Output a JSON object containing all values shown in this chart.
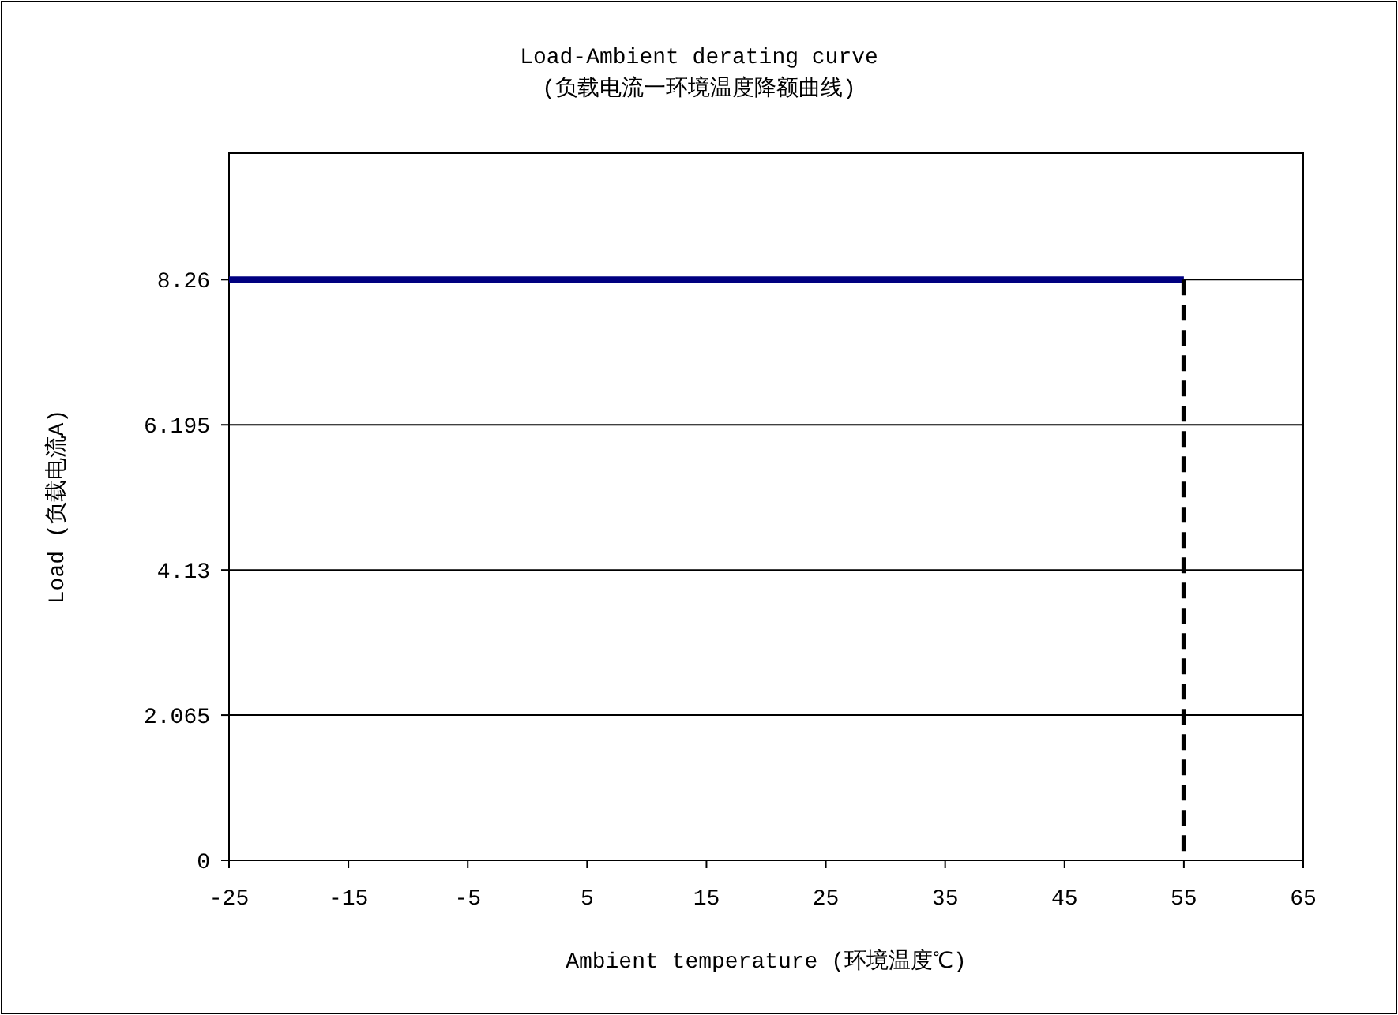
{
  "chart_data": {
    "type": "line",
    "title": "Load-Ambient derating curve",
    "subtitle": "(负载电流一环境温度降额曲线)",
    "xlabel": "Ambient temperature  (环境温度℃)",
    "ylabel": "Load (负载电流A)",
    "x": [
      -25,
      55
    ],
    "xlim": [
      -25,
      65
    ],
    "xticks": [
      -25,
      -15,
      -5,
      5,
      15,
      25,
      35,
      45,
      55,
      65
    ],
    "ylim": [
      0,
      10.06
    ],
    "yticks": [
      0,
      2.065,
      4.13,
      6.195,
      8.26
    ],
    "grid": "y",
    "marker": "none",
    "series": [
      {
        "color": "#000080",
        "values": [
          8.26,
          8.26
        ],
        "line_style": "solid"
      },
      {
        "color": "#000000",
        "x": [
          55,
          55
        ],
        "values": [
          8.26,
          0
        ],
        "line_style": "dashed"
      }
    ]
  }
}
